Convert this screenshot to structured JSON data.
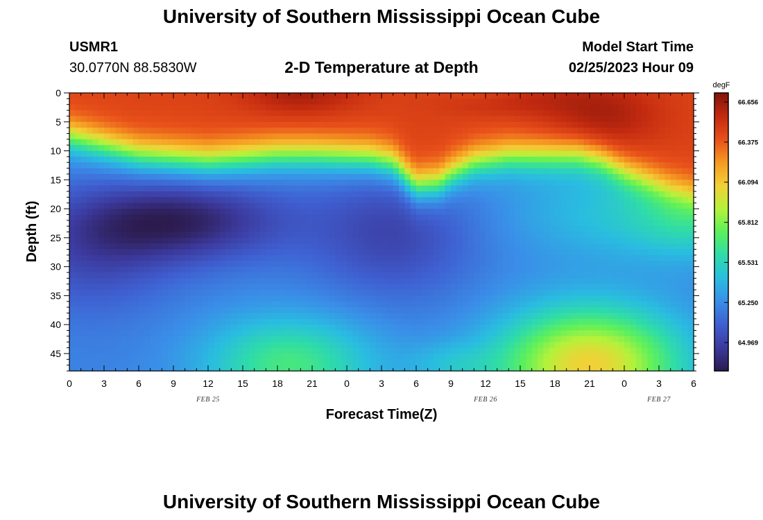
{
  "page": {
    "title": "University of Southern Mississippi Ocean Cube",
    "title_repeat": "University of Southern Mississippi Ocean Cube"
  },
  "header": {
    "station": "USMR1",
    "coords": "30.0770N  88.5830W",
    "chart_title": "2-D Temperature at Depth",
    "model_label": "Model Start Time",
    "model_time": "02/25/2023 Hour 09"
  },
  "colors": {
    "background": "#ffffff",
    "palette": [
      "#2c1b4e",
      "#3c3a9e",
      "#3f5fd0",
      "#3a8ee8",
      "#29bde0",
      "#2fdca8",
      "#5cf05c",
      "#b5f23a",
      "#f2d036",
      "#f59a22",
      "#e8501a",
      "#c22a10",
      "#821409"
    ]
  },
  "chart_data": {
    "type": "heatmap",
    "title": "2-D Temperature at Depth",
    "xlabel": "Forecast Time(Z)",
    "ylabel": "Depth (ft)",
    "colorbar_unit": "degF",
    "colorbar_range": [
      64.77,
      66.72
    ],
    "colorbar_ticks": [
      "66.656",
      "66.375",
      "66.094",
      "65.812",
      "65.531",
      "65.250",
      "64.969"
    ],
    "colorbar_tick_values": [
      66.656,
      66.375,
      66.094,
      65.812,
      65.531,
      65.25,
      64.969
    ],
    "x_range_hours": [
      0,
      54
    ],
    "x_ticks_hours": [
      0,
      3,
      6,
      9,
      12,
      15,
      18,
      21,
      24,
      27,
      30,
      33,
      36,
      39,
      42,
      45,
      48,
      51,
      54
    ],
    "x_tick_labels": [
      "0",
      "3",
      "6",
      "9",
      "12",
      "15",
      "18",
      "21",
      "0",
      "3",
      "6",
      "9",
      "12",
      "15",
      "18",
      "21",
      "0",
      "3",
      "6"
    ],
    "date_labels": [
      {
        "hour": 12,
        "text": "FEB 25"
      },
      {
        "hour": 36,
        "text": "FEB 26"
      },
      {
        "hour": 51,
        "text": "FEB 27"
      }
    ],
    "y_range_ft": [
      0,
      48
    ],
    "y_ticks_ft": [
      0,
      5,
      10,
      15,
      20,
      25,
      30,
      35,
      40,
      45
    ],
    "y_tick_labels": [
      "0",
      "5",
      "10",
      "15",
      "20",
      "25",
      "30",
      "35",
      "40",
      "45"
    ],
    "model": {
      "surface_layer_degF": 66.45,
      "thermocline_depth_ft": [
        [
          0,
          7.5
        ],
        [
          2,
          8.5
        ],
        [
          4,
          9.5
        ],
        [
          6,
          10.5
        ],
        [
          9,
          11
        ],
        [
          12,
          11.5
        ],
        [
          15,
          11
        ],
        [
          18,
          10.5
        ],
        [
          21,
          10.5
        ],
        [
          24,
          10.8
        ],
        [
          26,
          11
        ],
        [
          28,
          12
        ],
        [
          29,
          14
        ],
        [
          30,
          16
        ],
        [
          32,
          15.5
        ],
        [
          33,
          14
        ],
        [
          35,
          12
        ],
        [
          38,
          11
        ],
        [
          41,
          11
        ],
        [
          44,
          11
        ],
        [
          46,
          12
        ],
        [
          48,
          14
        ],
        [
          50,
          15.5
        ],
        [
          52,
          17
        ],
        [
          54,
          18
        ]
      ],
      "cold_core": [
        {
          "hour": 9.5,
          "depth_ft": 22,
          "temp_degF": 64.82
        },
        {
          "hour": 28,
          "depth_ft": 24,
          "temp_degF": 64.98
        }
      ],
      "bottom_warm_cores": [
        {
          "hour": 19,
          "depth_ft": 47,
          "temp_degF": 65.55
        },
        {
          "hour": 45,
          "depth_ft": 47,
          "temp_degF": 65.95
        }
      ]
    }
  }
}
